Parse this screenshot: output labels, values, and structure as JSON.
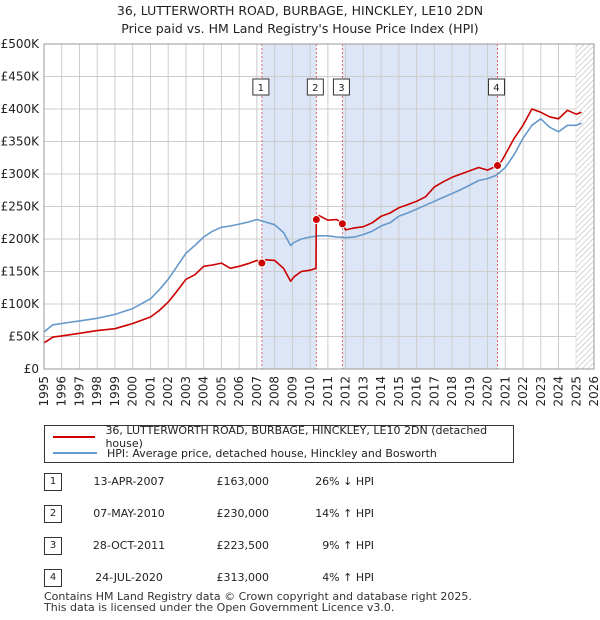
{
  "title_line1": "36, LUTTERWORTH ROAD, BURBAGE, HINCKLEY, LE10 2DN",
  "title_line2": "Price paid vs. HM Land Registry's House Price Index (HPI)",
  "legend": {
    "property": "36, LUTTERWORTH ROAD, BURBAGE, HINCKLEY, LE10 2DN (detached house)",
    "hpi": "HPI: Average price, detached house, Hinckley and Bosworth"
  },
  "colors": {
    "property": "#cc0000",
    "hpi": "#6699cc",
    "shade": "#dde6f7",
    "vline": "#e06666"
  },
  "transactions": [
    {
      "num": "1",
      "date": "13-APR-2007",
      "price": "£163,000",
      "hpi": "26% ↓ HPI"
    },
    {
      "num": "2",
      "date": "07-MAY-2010",
      "price": "£230,000",
      "hpi": "14% ↑ HPI"
    },
    {
      "num": "3",
      "date": "28-OCT-2011",
      "price": "£223,500",
      "hpi": "9% ↑ HPI"
    },
    {
      "num": "4",
      "date": "24-JUL-2020",
      "price": "£313,000",
      "hpi": "4% ↑ HPI"
    }
  ],
  "footer_line1": "Contains HM Land Registry data © Crown copyright and database right 2025.",
  "footer_line2": "This data is licensed under the Open Government Licence v3.0.",
  "chart_data": {
    "type": "line",
    "xlim": [
      1995,
      2026
    ],
    "ylim": [
      0,
      500000
    ],
    "grid": true,
    "y_ticks": [
      0,
      50000,
      100000,
      150000,
      200000,
      250000,
      300000,
      350000,
      400000,
      450000,
      500000
    ],
    "y_tick_labels": [
      "£0",
      "£50K",
      "£100K",
      "£150K",
      "£200K",
      "£250K",
      "£300K",
      "£350K",
      "£400K",
      "£450K",
      "£500K"
    ],
    "x_tick_labels": [
      "1995",
      "1996",
      "1997",
      "1998",
      "1999",
      "2000",
      "2001",
      "2002",
      "2003",
      "2004",
      "2005",
      "2006",
      "2007",
      "2008",
      "2009",
      "2010",
      "2011",
      "2012",
      "2013",
      "2014",
      "2015",
      "2016",
      "2017",
      "2018",
      "2019",
      "2020",
      "2021",
      "2022",
      "2023",
      "2024",
      "2025",
      "2026"
    ],
    "hatched_after": 2025.0,
    "shaded_spans": [
      [
        2007.28,
        2010.35
      ],
      [
        2011.82,
        2020.56
      ]
    ],
    "sale_markers": [
      {
        "label": "1",
        "x": 2007.28,
        "y": 163000
      },
      {
        "label": "2",
        "x": 2010.35,
        "y": 230000
      },
      {
        "label": "3",
        "x": 2011.82,
        "y": 223500
      },
      {
        "label": "4",
        "x": 2020.56,
        "y": 313000
      }
    ],
    "series": [
      {
        "name": "36, LUTTERWORTH ROAD, BURBAGE, HINCKLEY, LE10 2DN (detached house)",
        "x": [
          1995.0,
          1995.5,
          1996,
          1997,
          1998,
          1999,
          2000,
          2001,
          2001.5,
          2002,
          2002.5,
          2003,
          2003.5,
          2004,
          2004.5,
          2005,
          2005.5,
          2006,
          2006.5,
          2007,
          2007.28,
          2007.5,
          2008,
          2008.5,
          2008.9,
          2009.1,
          2009.5,
          2010,
          2010.33,
          2010.35,
          2010.5,
          2011,
          2011.5,
          2011.82,
          2012,
          2012.5,
          2013,
          2013.5,
          2014,
          2014.5,
          2015,
          2015.5,
          2016,
          2016.5,
          2017,
          2017.5,
          2018,
          2018.5,
          2019,
          2019.5,
          2020,
          2020.56,
          2020.8,
          2021,
          2021.5,
          2022,
          2022.5,
          2023,
          2023.5,
          2024,
          2024.5,
          2025,
          2025.3
        ],
        "y": [
          40000,
          49000,
          51000,
          55000,
          59000,
          62000,
          70000,
          80000,
          90000,
          103000,
          120000,
          138000,
          145000,
          158000,
          160000,
          163000,
          155000,
          158000,
          162000,
          167000,
          163000,
          168000,
          167000,
          155000,
          135000,
          142000,
          150000,
          152000,
          155000,
          230000,
          236000,
          229000,
          230000,
          223500,
          214000,
          217000,
          219000,
          225000,
          235000,
          240000,
          248000,
          253000,
          258000,
          265000,
          280000,
          288000,
          295000,
          300000,
          305000,
          310000,
          306000,
          313000,
          320000,
          330000,
          355000,
          375000,
          400000,
          395000,
          388000,
          385000,
          398000,
          392000,
          395000
        ]
      },
      {
        "name": "HPI: Average price, detached house, Hinckley and Bosworth",
        "x": [
          1995.0,
          1995.5,
          1996,
          1997,
          1998,
          1999,
          2000,
          2001,
          2001.5,
          2002,
          2002.5,
          2003,
          2003.5,
          2004,
          2004.5,
          2005,
          2005.5,
          2006,
          2006.5,
          2007,
          2007.5,
          2008,
          2008.5,
          2008.9,
          2009.1,
          2009.5,
          2010,
          2010.5,
          2011,
          2011.5,
          2012,
          2012.5,
          2013,
          2013.5,
          2014,
          2014.5,
          2015,
          2015.5,
          2016,
          2016.5,
          2017,
          2017.5,
          2018,
          2018.5,
          2019,
          2019.5,
          2020,
          2020.5,
          2021,
          2021.5,
          2022,
          2022.5,
          2023,
          2023.5,
          2024,
          2024.5,
          2025,
          2025.3
        ],
        "y": [
          57000,
          68000,
          70000,
          74000,
          78000,
          84000,
          93000,
          108000,
          122000,
          138000,
          158000,
          178000,
          190000,
          203000,
          212000,
          218000,
          220000,
          223000,
          226000,
          230000,
          226000,
          222000,
          210000,
          190000,
          195000,
          200000,
          203000,
          205000,
          205000,
          203000,
          202000,
          203000,
          207000,
          212000,
          220000,
          225000,
          235000,
          240000,
          246000,
          252000,
          258000,
          264000,
          270000,
          276000,
          283000,
          290000,
          293000,
          298000,
          310000,
          330000,
          355000,
          375000,
          385000,
          372000,
          365000,
          375000,
          375000,
          378000
        ]
      }
    ]
  }
}
